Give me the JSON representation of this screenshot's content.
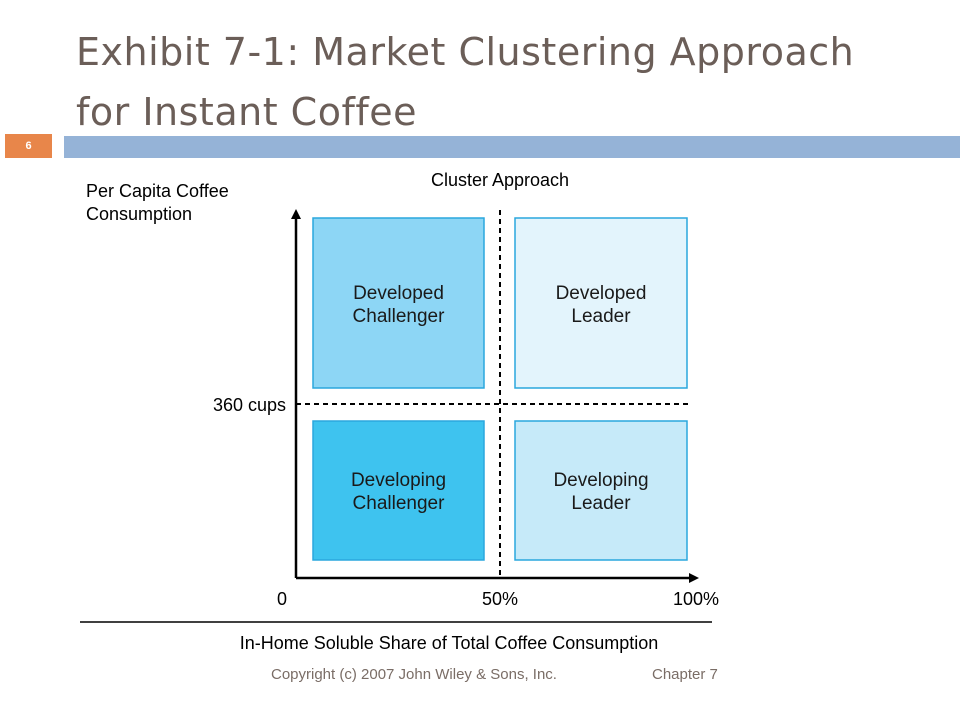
{
  "slide": {
    "title_line1": "Exhibit 7-1: Market Clustering Approach",
    "title_line2": "for Instant Coffee",
    "number": "6"
  },
  "diagram": {
    "heading": "Cluster Approach",
    "y_axis_label_line1": "Per Capita Coffee",
    "y_axis_label_line2": "Consumption",
    "y_threshold_label": "360 cups",
    "x_tick_labels": [
      "0",
      "50%",
      "100%"
    ],
    "x_axis_label": "In-Home Soluble Share of Total Coffee Consumption",
    "quadrants": [
      {
        "line1": "Developed",
        "line2": "Challenger",
        "fill": "#8dd6f5"
      },
      {
        "line1": "Developed",
        "line2": "Leader",
        "fill": "#e3f4fc"
      },
      {
        "line1": "Developing",
        "line2": "Challenger",
        "fill": "#3ec3ef"
      },
      {
        "line1": "Developing",
        "line2": "Leader",
        "fill": "#c6eaf9"
      }
    ],
    "quadrant_border_color": "#2aa7dd"
  },
  "footer": {
    "copyright": "Copyright (c) 2007 John Wiley & Sons, Inc.",
    "chapter": "Chapter 7"
  },
  "colors": {
    "title": "#6b5e58",
    "header_bar": "#95b3d7",
    "slide_number_box": "#e8864a"
  }
}
